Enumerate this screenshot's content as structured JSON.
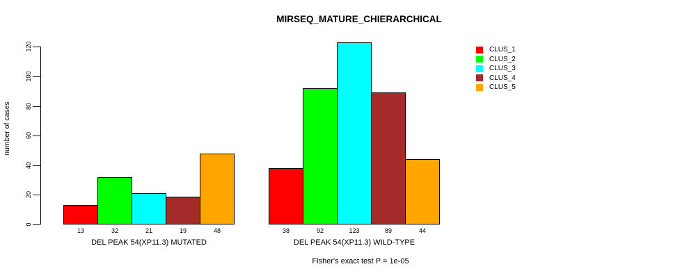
{
  "chart_data": {
    "type": "bar",
    "title": "MIRSEQ_MATURE_CHIERARCHICAL",
    "ylabel": "number of cases",
    "ylim": [
      0,
      130
    ],
    "yticks": [
      0,
      20,
      40,
      60,
      80,
      100,
      120
    ],
    "grid": false,
    "legend_position": "top-right",
    "bar_border_color": "#000000",
    "legend": [
      {
        "name": "CLUS_1",
        "color": "#FF0000"
      },
      {
        "name": "CLUS_2",
        "color": "#00FF00"
      },
      {
        "name": "CLUS_3",
        "color": "#00FFFF"
      },
      {
        "name": "CLUS_4",
        "color": "#A52A2A"
      },
      {
        "name": "CLUS_5",
        "color": "#FFA500"
      }
    ],
    "categories": [
      "DEL PEAK 54(XP11.3) MUTATED",
      "DEL PEAK 54(XP11.3) WILD-TYPE"
    ],
    "series": [
      {
        "name": "CLUS_1",
        "values": [
          13,
          38
        ]
      },
      {
        "name": "CLUS_2",
        "values": [
          32,
          92
        ]
      },
      {
        "name": "CLUS_3",
        "values": [
          21,
          123
        ]
      },
      {
        "name": "CLUS_4",
        "values": [
          19,
          89
        ]
      },
      {
        "name": "CLUS_5",
        "values": [
          48,
          44
        ]
      }
    ],
    "groups": [
      {
        "label": "DEL PEAK 54(XP11.3) MUTATED",
        "values": [
          13,
          32,
          21,
          19,
          48
        ]
      },
      {
        "label": "DEL PEAK 54(XP11.3) WILD-TYPE",
        "values": [
          38,
          92,
          123,
          89,
          44
        ]
      }
    ],
    "footer": "Fisher's exact test P = 1e-05"
  }
}
